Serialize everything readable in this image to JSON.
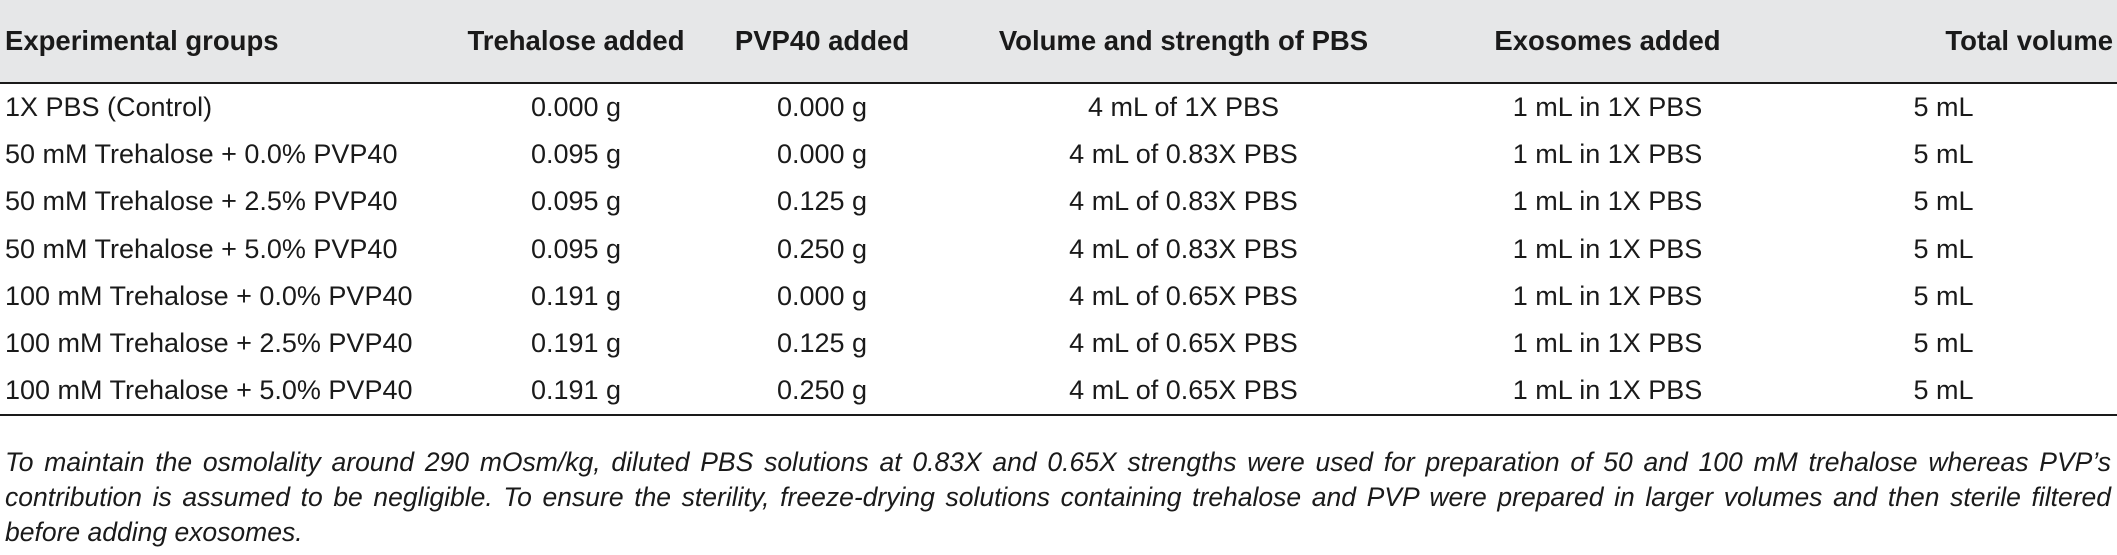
{
  "table": {
    "headers": [
      "Experimental groups",
      "Trehalose added",
      "PVP40 added",
      "Volume and strength of PBS",
      "Exosomes added",
      "Total volume"
    ],
    "rows": [
      [
        "1X PBS (Control)",
        "0.000 g",
        "0.000 g",
        "4 mL of 1X PBS",
        "1 mL in 1X PBS",
        "5 mL"
      ],
      [
        "50 mM Trehalose + 0.0% PVP40",
        "0.095 g",
        "0.000 g",
        "4 mL of 0.83X PBS",
        "1 mL in 1X PBS",
        "5 mL"
      ],
      [
        "50 mM Trehalose + 2.5% PVP40",
        "0.095 g",
        "0.125 g",
        "4 mL of 0.83X PBS",
        "1 mL in 1X PBS",
        "5 mL"
      ],
      [
        "50 mM Trehalose + 5.0% PVP40",
        "0.095 g",
        "0.250 g",
        "4 mL of 0.83X PBS",
        "1 mL in 1X PBS",
        "5 mL"
      ],
      [
        "100 mM Trehalose + 0.0% PVP40",
        "0.191 g",
        "0.000 g",
        "4 mL of 0.65X PBS",
        "1 mL in 1X PBS",
        "5 mL"
      ],
      [
        "100 mM Trehalose + 2.5% PVP40",
        "0.191 g",
        "0.125 g",
        "4 mL of 0.65X PBS",
        "1 mL in 1X PBS",
        "5 mL"
      ],
      [
        "100 mM Trehalose + 5.0% PVP40",
        "0.191 g",
        "0.250 g",
        "4 mL of 0.65X PBS",
        "1 mL in 1X PBS",
        "5 mL"
      ]
    ],
    "footnote": "To maintain the osmolality around 290 mOsm/kg, diluted PBS solutions at 0.83X and 0.65X strengths were used for preparation of 50 and 100 mM trehalose whereas PVP’s contribution is assumed to be negligible. To ensure the sterility, freeze-drying solutions containing trehalose and PVP were prepared in larger volumes and then sterile filtered before adding exosomes."
  },
  "colors": {
    "header_background": "#e6e7e8",
    "rule": "#1a1a1a",
    "text": "#1a1a1a"
  }
}
